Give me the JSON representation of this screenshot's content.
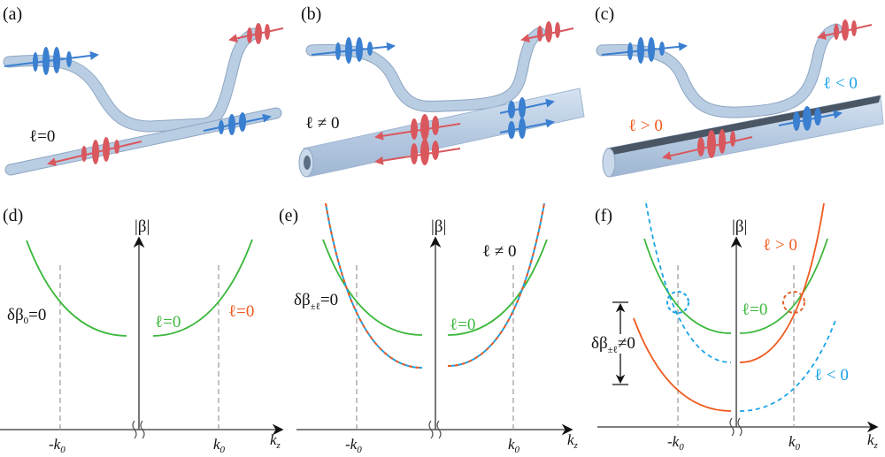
{
  "panels": {
    "a": {
      "label": "(a)",
      "annotation": "ℓ=0"
    },
    "b": {
      "label": "(b)",
      "annotation": "ℓ ≠ 0"
    },
    "c": {
      "label": "(c)",
      "annotation_pos": "ℓ > 0",
      "annotation_neg": "ℓ < 0"
    },
    "d": {
      "label": "(d)",
      "y_axis": "|β|",
      "x_axis": "k",
      "x_axis_sub": "z",
      "tick_left": "-k",
      "tick_right": "k",
      "tick_sub": "0",
      "delta": "δβ",
      "delta_sub": "0",
      "delta_eq": "=0",
      "curve_label_green": "ℓ=0",
      "curve_label_orange": "ℓ=0"
    },
    "e": {
      "label": "(e)",
      "y_axis": "|β|",
      "x_axis": "k",
      "x_axis_sub": "z",
      "tick_left": "-k",
      "tick_right": "k",
      "tick_sub": "0",
      "delta": "δβ",
      "delta_sub": "±ℓ",
      "delta_eq": "=0",
      "curve_label_green": "ℓ=0",
      "curve_label_other": "ℓ ≠ 0"
    },
    "f": {
      "label": "(f)",
      "y_axis": "|β|",
      "x_axis": "k",
      "x_axis_sub": "z",
      "tick_left": "-k",
      "tick_right": "k",
      "tick_sub": "0",
      "delta": "δβ",
      "delta_sub": "±ℓ",
      "delta_eq": "≠0",
      "curve_label_green": "ℓ=0",
      "curve_label_orange": "ℓ > 0",
      "curve_label_blue": "ℓ < 0"
    }
  },
  "colors": {
    "l_zero": "#3cb83c",
    "l_positive": "#f05a1e",
    "l_negative": "#1aa3e8",
    "pulse_red": "#d9585e",
    "pulse_blue": "#3a7fd0",
    "fiber": "#b9cde3"
  }
}
